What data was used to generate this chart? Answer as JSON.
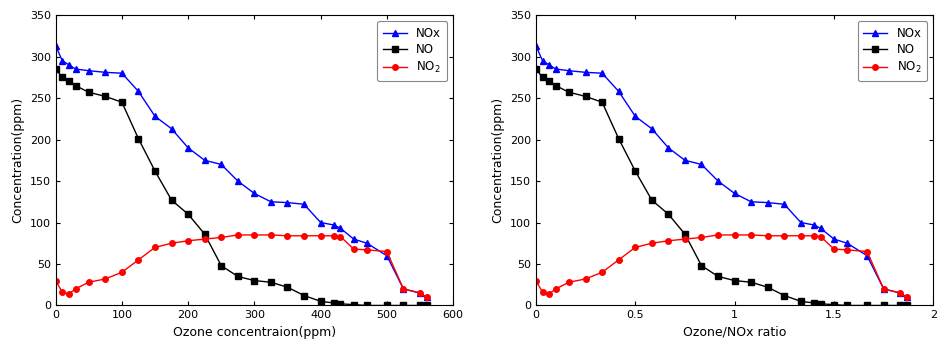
{
  "ozone_conc": [
    0,
    10,
    20,
    30,
    50,
    75,
    100,
    125,
    150,
    175,
    200,
    225,
    250,
    275,
    300,
    325,
    350,
    375,
    400,
    420,
    430,
    450,
    470,
    500,
    525,
    550,
    560
  ],
  "NOx": [
    313,
    295,
    290,
    285,
    283,
    281,
    280,
    258,
    228,
    213,
    190,
    175,
    170,
    150,
    135,
    125,
    124,
    122,
    100,
    97,
    93,
    80,
    75,
    60,
    20,
    15,
    10
  ],
  "NO": [
    285,
    275,
    270,
    265,
    257,
    252,
    245,
    201,
    162,
    127,
    110,
    86,
    48,
    35,
    30,
    28,
    22,
    12,
    5,
    3,
    2,
    1,
    0,
    0,
    0,
    0,
    0
  ],
  "NO2": [
    30,
    16,
    14,
    20,
    28,
    32,
    40,
    55,
    70,
    75,
    78,
    80,
    82,
    85,
    85,
    85,
    84,
    84,
    84,
    84,
    83,
    68,
    67,
    65,
    20,
    15,
    10
  ],
  "initial_NOx": 300,
  "xlabel1": "Ozone concentraion(ppm)",
  "xlabel2": "Ozone/NOx ratio",
  "ylabel": "Concentration(ppm)",
  "xlim1": [
    0,
    600
  ],
  "xlim2": [
    0,
    2
  ],
  "ylim": [
    0,
    350
  ],
  "yticks": [
    0,
    50,
    100,
    150,
    200,
    250,
    300,
    350
  ],
  "xticks1": [
    0,
    100,
    200,
    300,
    400,
    500,
    600
  ],
  "xticks2": [
    0,
    0.5,
    1,
    1.5,
    2
  ],
  "NOx_color": "#0000ff",
  "NO_color": "#000000",
  "NO2_color": "#ff0000",
  "legend_NOx": "NOx",
  "legend_NO": "NO",
  "legend_NO2": "NO$_2$"
}
